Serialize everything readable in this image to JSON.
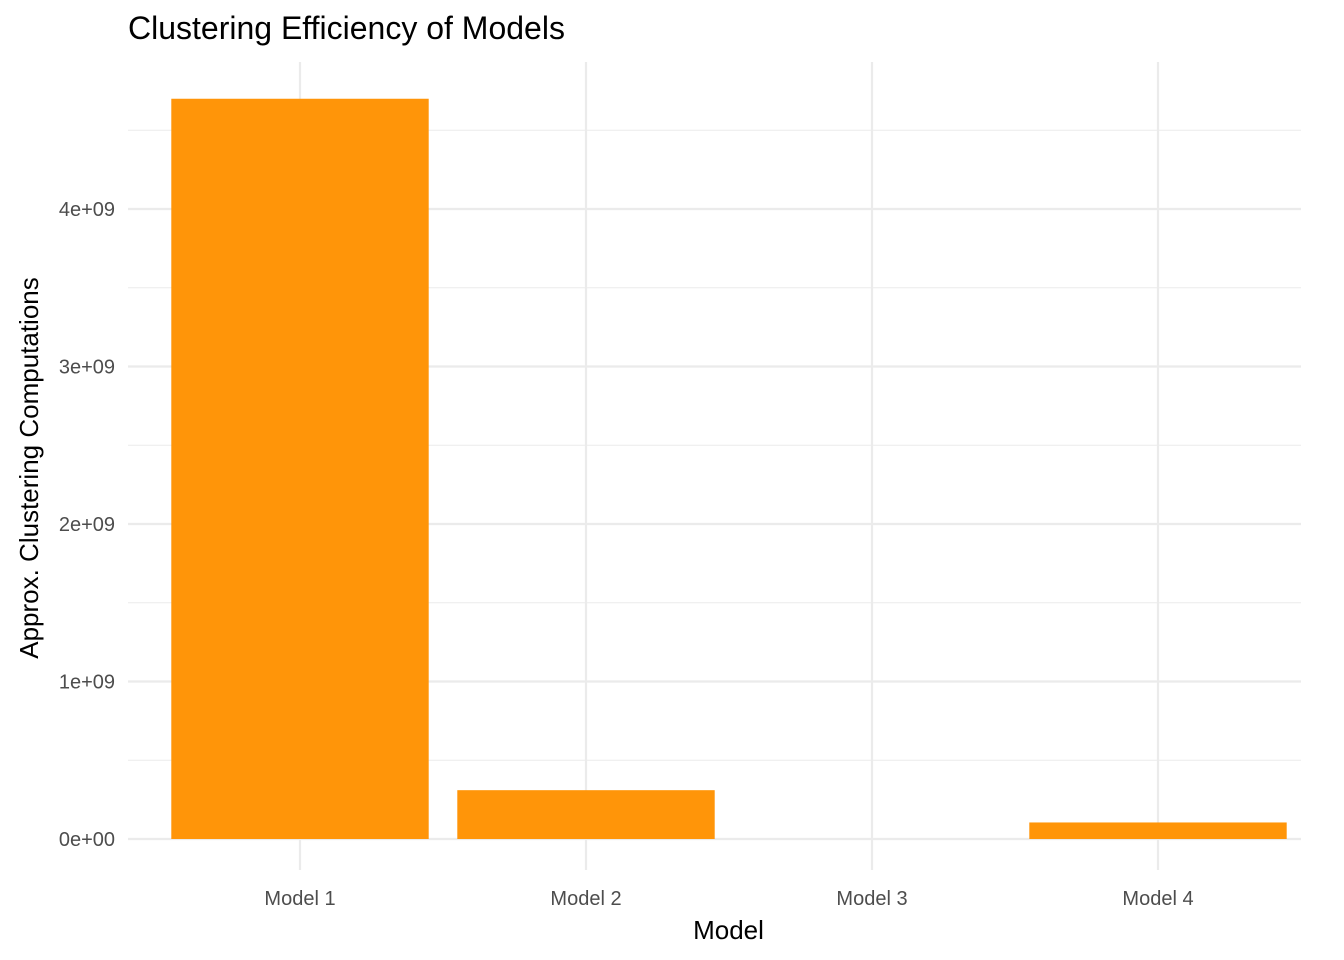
{
  "chart_data": {
    "type": "bar",
    "title": "Clustering Efficiency of Models",
    "xlabel": "Model",
    "ylabel": "Approx. Clustering Computations",
    "categories": [
      "Model 1",
      "Model 2",
      "Model 3",
      "Model 4"
    ],
    "values": [
      4700000000,
      310000000,
      0,
      105000000
    ],
    "ylim": [
      0,
      4850000000
    ],
    "yticks": [
      0,
      1000000000,
      2000000000,
      3000000000,
      4000000000
    ],
    "ytick_labels": [
      "0e+00",
      "1e+09",
      "2e+09",
      "3e+09",
      "4e+09"
    ],
    "grid": true,
    "bar_color": "#FF9509"
  }
}
